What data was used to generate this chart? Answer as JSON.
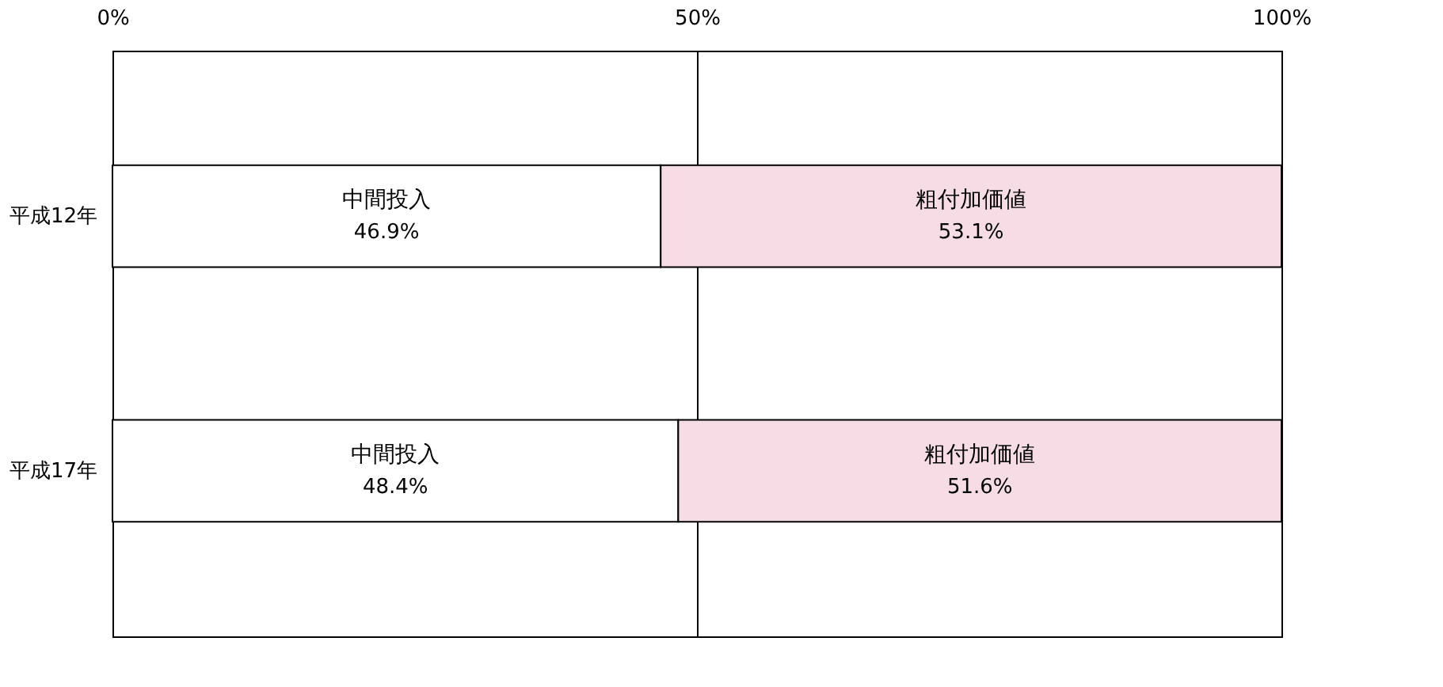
{
  "chart_data": {
    "type": "bar",
    "orientation": "horizontal",
    "stacked": true,
    "categories": [
      "平成12年",
      "平成17年"
    ],
    "series": [
      {
        "name": "中間投入",
        "color": "#ffffff",
        "values": [
          46.9,
          48.4
        ],
        "value_labels": [
          "46.9%",
          "48.4%"
        ]
      },
      {
        "name": "粗付加価値",
        "color": "#f6dde5",
        "values": [
          53.1,
          51.6
        ],
        "value_labels": [
          "53.1%",
          "51.6%"
        ]
      }
    ],
    "xlim": [
      0,
      100
    ],
    "xticks": [
      {
        "value": 0,
        "label": "0%"
      },
      {
        "value": 50,
        "label": "50%"
      },
      {
        "value": 100,
        "label": "100%"
      }
    ],
    "grid": "x"
  }
}
